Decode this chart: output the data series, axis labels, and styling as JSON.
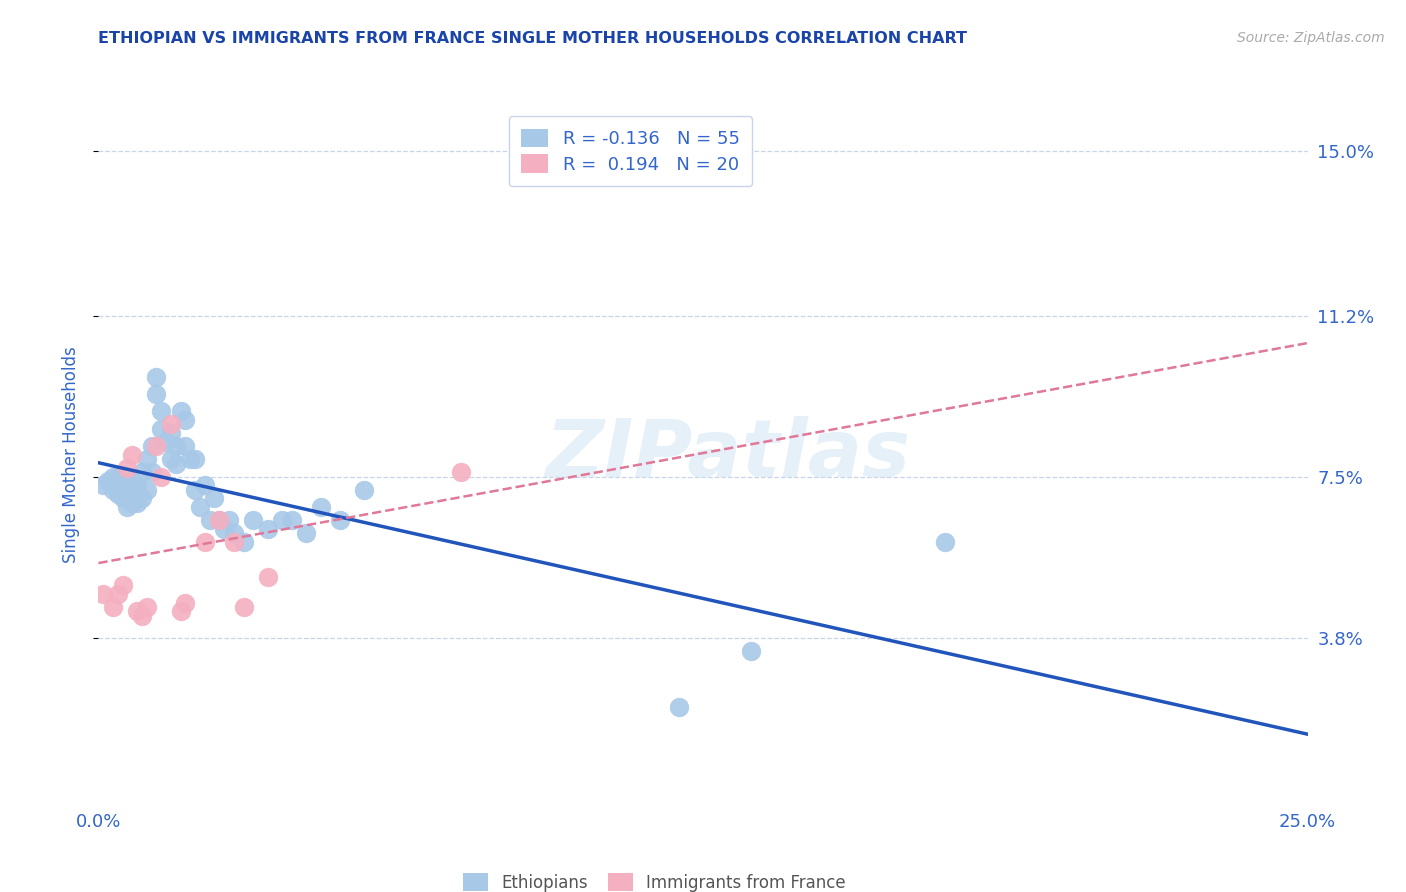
{
  "title": "ETHIOPIAN VS IMMIGRANTS FROM FRANCE SINGLE MOTHER HOUSEHOLDS CORRELATION CHART",
  "source": "Source: ZipAtlas.com",
  "ylabel": "Single Mother Households",
  "xlim": [
    0.0,
    0.25
  ],
  "ylim": [
    0.0,
    0.16
  ],
  "yticks": [
    0.038,
    0.075,
    0.112,
    0.15
  ],
  "ytick_labels": [
    "3.8%",
    "7.5%",
    "11.2%",
    "15.0%"
  ],
  "xticks": [
    0.0,
    0.05,
    0.1,
    0.15,
    0.2,
    0.25
  ],
  "xtick_labels": [
    "0.0%",
    "",
    "",
    "",
    "",
    "25.0%"
  ],
  "watermark": "ZIPatlas",
  "blue_color": "#a8c8e8",
  "pink_color": "#f4b0c0",
  "line_blue": "#2255bb",
  "line_pink": "#e07898",
  "R_blue": -0.136,
  "N_blue": 55,
  "R_pink": 0.194,
  "N_pink": 20,
  "ethiopians_x": [
    0.001,
    0.002,
    0.003,
    0.003,
    0.004,
    0.004,
    0.005,
    0.005,
    0.006,
    0.006,
    0.007,
    0.007,
    0.008,
    0.008,
    0.009,
    0.009,
    0.01,
    0.01,
    0.011,
    0.011,
    0.012,
    0.012,
    0.013,
    0.013,
    0.014,
    0.015,
    0.015,
    0.016,
    0.016,
    0.017,
    0.018,
    0.018,
    0.019,
    0.02,
    0.02,
    0.021,
    0.022,
    0.023,
    0.024,
    0.025,
    0.026,
    0.027,
    0.028,
    0.03,
    0.032,
    0.035,
    0.038,
    0.04,
    0.043,
    0.046,
    0.05,
    0.055,
    0.12,
    0.135,
    0.175
  ],
  "ethiopians_y": [
    0.073,
    0.074,
    0.075,
    0.072,
    0.075,
    0.071,
    0.073,
    0.07,
    0.072,
    0.068,
    0.074,
    0.069,
    0.073,
    0.069,
    0.076,
    0.07,
    0.079,
    0.072,
    0.082,
    0.076,
    0.094,
    0.098,
    0.086,
    0.09,
    0.083,
    0.079,
    0.085,
    0.082,
    0.078,
    0.09,
    0.088,
    0.082,
    0.079,
    0.072,
    0.079,
    0.068,
    0.073,
    0.065,
    0.07,
    0.065,
    0.063,
    0.065,
    0.062,
    0.06,
    0.065,
    0.063,
    0.065,
    0.065,
    0.062,
    0.068,
    0.065,
    0.072,
    0.022,
    0.035,
    0.06
  ],
  "france_x": [
    0.001,
    0.003,
    0.004,
    0.005,
    0.006,
    0.007,
    0.008,
    0.009,
    0.01,
    0.012,
    0.013,
    0.015,
    0.017,
    0.018,
    0.022,
    0.025,
    0.028,
    0.03,
    0.035,
    0.075
  ],
  "france_y": [
    0.048,
    0.045,
    0.048,
    0.05,
    0.077,
    0.08,
    0.044,
    0.043,
    0.045,
    0.082,
    0.075,
    0.087,
    0.044,
    0.046,
    0.06,
    0.065,
    0.06,
    0.045,
    0.052,
    0.076
  ],
  "grid_color": "#c8d4e8",
  "bg_color": "#ffffff",
  "title_color": "#1a44aa",
  "axis_color": "#3366cc",
  "tick_color": "#3366cc",
  "source_color": "#aaaaaa"
}
